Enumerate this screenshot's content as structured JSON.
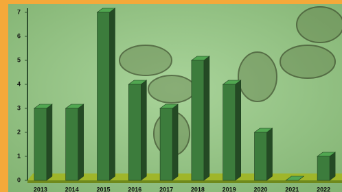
{
  "chart_data": {
    "type": "bar",
    "categories": [
      "2013",
      "2014",
      "2015",
      "2016",
      "2017",
      "2018",
      "2019",
      "2020",
      "2021",
      "2022"
    ],
    "values": [
      3,
      3,
      7,
      4,
      3,
      5,
      4,
      2,
      0,
      1
    ],
    "color": "#3c7c3c",
    "ylim": [
      0,
      7
    ],
    "yticks": [
      0,
      1,
      2,
      3,
      4,
      5,
      6,
      7
    ]
  }
}
